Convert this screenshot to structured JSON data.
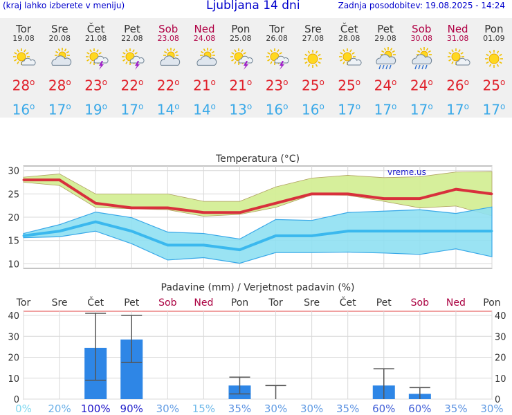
{
  "header": {
    "left_note": "(kraj lahko izberete v meniju)",
    "title": "Ljubljana 14 dni",
    "last_update": "Zadnja posodobitev: 19.08.2025 - 14:24"
  },
  "forecast": {
    "degree_symbol": "o",
    "days": [
      {
        "name": "Tor",
        "date": "19.08",
        "weekend": false,
        "icon": "sun-cloud-icon",
        "tmax": "28",
        "tmin": "16"
      },
      {
        "name": "Sre",
        "date": "20.08",
        "weekend": false,
        "icon": "cloudy-sun-icon",
        "tmax": "28",
        "tmin": "17"
      },
      {
        "name": "Čet",
        "date": "21.08",
        "weekend": false,
        "icon": "thunderstorm-sun-icon",
        "tmax": "23",
        "tmin": "19"
      },
      {
        "name": "Pet",
        "date": "22.08",
        "weekend": false,
        "icon": "thunderstorm-sun-icon",
        "tmax": "22",
        "tmin": "17"
      },
      {
        "name": "Sob",
        "date": "23.08",
        "weekend": true,
        "icon": "cloudy-sun-icon",
        "tmax": "22",
        "tmin": "14"
      },
      {
        "name": "Ned",
        "date": "24.08",
        "weekend": true,
        "icon": "cloudy-sun-icon",
        "tmax": "21",
        "tmin": "14"
      },
      {
        "name": "Pon",
        "date": "25.08",
        "weekend": false,
        "icon": "thunderstorm-sun-icon",
        "tmax": "21",
        "tmin": "13"
      },
      {
        "name": "Tor",
        "date": "26.08",
        "weekend": false,
        "icon": "thunderstorm-sun-icon",
        "tmax": "23",
        "tmin": "16"
      },
      {
        "name": "Sre",
        "date": "27.08",
        "weekend": false,
        "icon": "sun-icon",
        "tmax": "25",
        "tmin": "16"
      },
      {
        "name": "Čet",
        "date": "28.08",
        "weekend": false,
        "icon": "sun-cloud-icon",
        "tmax": "25",
        "tmin": "17"
      },
      {
        "name": "Pet",
        "date": "29.08",
        "weekend": false,
        "icon": "rain-sun-icon",
        "tmax": "24",
        "tmin": "17"
      },
      {
        "name": "Sob",
        "date": "30.08",
        "weekend": true,
        "icon": "rain-sun-icon",
        "tmax": "24",
        "tmin": "17"
      },
      {
        "name": "Ned",
        "date": "31.08",
        "weekend": true,
        "icon": "sun-cloud-icon",
        "tmax": "26",
        "tmin": "17"
      },
      {
        "name": "Pon",
        "date": "01.09",
        "weekend": false,
        "icon": "sun-icon",
        "tmax": "25",
        "tmin": "17"
      }
    ]
  },
  "colors": {
    "tmax_line": "#d8303c",
    "tmin_line": "#3ab8ee",
    "tmax_band": "#d4ee96",
    "tmin_band": "#8fe0f2",
    "precip_bar": "#2e86e6",
    "weekend_label": "#aa0040",
    "prob_low": "#7fd8f0",
    "prob_high": "#1a10c8"
  },
  "chart_data": [
    {
      "type": "line",
      "title": "Temperatura (°C)",
      "watermark": "vreme.us",
      "x": [
        "19.08",
        "20.08",
        "21.08",
        "22.08",
        "23.08",
        "24.08",
        "25.08",
        "26.08",
        "27.08",
        "28.08",
        "29.08",
        "30.08",
        "31.08",
        "01.09"
      ],
      "ylim": [
        9,
        31
      ],
      "yticks": [
        10,
        15,
        20,
        25,
        30
      ],
      "grid": true,
      "series": [
        {
          "role": "tmax",
          "values": [
            28,
            28,
            23,
            22,
            22,
            21,
            21,
            23,
            25,
            25,
            24,
            24,
            26,
            25
          ]
        },
        {
          "role": "tmin",
          "values": [
            16,
            17,
            19,
            17,
            14,
            14,
            13,
            16,
            16,
            17,
            17,
            17,
            17,
            17
          ]
        }
      ],
      "bands": [
        {
          "role": "tmax_range",
          "upper": [
            28.6,
            29.3,
            25.0,
            25.0,
            25.0,
            23.4,
            23.4,
            26.5,
            28.4,
            29.0,
            28.5,
            28.7,
            29.7,
            29.8
          ],
          "lower": [
            27.5,
            26.8,
            22.1,
            21.8,
            21.6,
            20.2,
            20.6,
            22.1,
            24.8,
            24.7,
            23.4,
            22.0,
            22.4,
            20.3
          ]
        },
        {
          "role": "tmin_range",
          "upper": [
            16.5,
            18.4,
            21.1,
            19.9,
            16.8,
            16.5,
            15.3,
            19.5,
            19.3,
            21.0,
            21.3,
            21.6,
            20.8,
            22.2
          ]
        },
        {
          "role": "tmin_range",
          "lower": [
            15.6,
            15.8,
            17.0,
            14.3,
            10.8,
            11.3,
            10.1,
            12.4,
            12.4,
            12.5,
            12.3,
            12.0,
            13.2,
            11.5
          ]
        }
      ]
    },
    {
      "type": "bar",
      "title": "Padavine (mm) / Verjetnost padavin (%)",
      "categories": [
        "Tor",
        "Sre",
        "Čet",
        "Pet",
        "Sob",
        "Ned",
        "Pon",
        "Tor",
        "Sre",
        "Čet",
        "Pet",
        "Sob",
        "Ned",
        "Pon"
      ],
      "weekend": [
        false,
        false,
        false,
        false,
        true,
        true,
        false,
        false,
        false,
        false,
        false,
        true,
        true,
        false
      ],
      "values": [
        0,
        0,
        24.5,
        28.5,
        0,
        0,
        6.5,
        0,
        0,
        0,
        6.5,
        2.5,
        0,
        0
      ],
      "err_low": [
        0,
        0,
        9,
        17.5,
        0,
        0,
        2.5,
        0,
        0,
        0,
        0,
        0,
        0,
        0
      ],
      "err_high": [
        0,
        0,
        41,
        40,
        0,
        0,
        10.5,
        6.5,
        0,
        0,
        14.5,
        5.5,
        0,
        0
      ],
      "probabilities": [
        "0%",
        "20%",
        "100%",
        "90%",
        "30%",
        "15%",
        "35%",
        "30%",
        "30%",
        "35%",
        "60%",
        "60%",
        "35%",
        "30%"
      ],
      "probability_values": [
        0,
        20,
        100,
        90,
        30,
        15,
        35,
        30,
        30,
        35,
        60,
        60,
        35,
        30
      ],
      "ylim": [
        0,
        42
      ],
      "yticks": [
        0,
        10,
        20,
        30,
        40
      ]
    }
  ]
}
